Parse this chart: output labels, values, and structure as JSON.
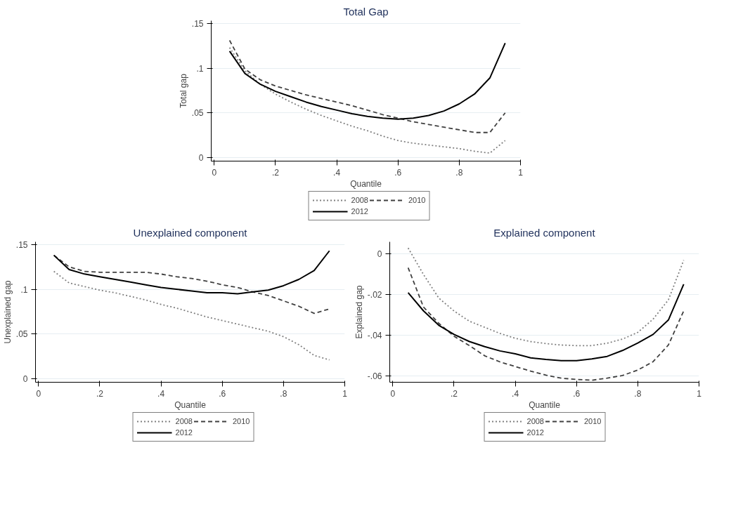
{
  "chart_data": [
    {
      "type": "line",
      "title": "Total Gap",
      "xlabel": "Quantile",
      "ylabel": "Total gap",
      "x": [
        0.05,
        0.1,
        0.15,
        0.2,
        0.25,
        0.3,
        0.35,
        0.4,
        0.45,
        0.5,
        0.55,
        0.6,
        0.65,
        0.7,
        0.75,
        0.8,
        0.85,
        0.9,
        0.95
      ],
      "xlim": [
        -0.01,
        1.0
      ],
      "xticks": [
        0,
        {
          "value": 0.2,
          "label": ".2"
        },
        {
          "value": 0.4,
          "label": ".4"
        },
        {
          "value": 0.6,
          "label": ".6"
        },
        {
          "value": 0.8,
          "label": ".8"
        },
        1
      ],
      "ylim": [
        -0.004,
        0.153
      ],
      "yticks": [
        0,
        {
          "value": 0.05,
          "label": ".05"
        },
        {
          "value": 0.1,
          "label": ".1"
        },
        {
          "value": 0.15,
          "label": ".15"
        }
      ],
      "grid": "y",
      "legend": "bottom",
      "series": [
        {
          "name": "2008",
          "color": "#808080",
          "line_style": "dotted",
          "values": [
            0.123,
            0.097,
            0.082,
            0.071,
            0.062,
            0.054,
            0.047,
            0.041,
            0.035,
            0.03,
            0.024,
            0.019,
            0.016,
            0.014,
            0.012,
            0.01,
            0.007,
            0.005,
            0.019
          ]
        },
        {
          "name": "2010",
          "color": "#404040",
          "line_style": "dashed",
          "values": [
            0.131,
            0.099,
            0.087,
            0.08,
            0.075,
            0.07,
            0.066,
            0.062,
            0.058,
            0.053,
            0.048,
            0.044,
            0.04,
            0.037,
            0.034,
            0.031,
            0.028,
            0.028,
            0.05
          ]
        },
        {
          "name": "2012",
          "color": "#000000",
          "line_style": "solid",
          "values": [
            0.119,
            0.094,
            0.082,
            0.074,
            0.068,
            0.062,
            0.057,
            0.053,
            0.049,
            0.046,
            0.044,
            0.043,
            0.044,
            0.047,
            0.052,
            0.06,
            0.071,
            0.089,
            0.128
          ]
        }
      ]
    },
    {
      "type": "line",
      "title": "Unexplained component",
      "xlabel": "Quantile",
      "ylabel": "Unexplained gap",
      "x": [
        0.05,
        0.1,
        0.15,
        0.2,
        0.25,
        0.3,
        0.35,
        0.4,
        0.45,
        0.5,
        0.55,
        0.6,
        0.65,
        0.7,
        0.75,
        0.8,
        0.85,
        0.9,
        0.95
      ],
      "xlim": [
        -0.01,
        1.0
      ],
      "xticks": [
        0,
        {
          "value": 0.2,
          "label": ".2"
        },
        {
          "value": 0.4,
          "label": ".4"
        },
        {
          "value": 0.6,
          "label": ".6"
        },
        {
          "value": 0.8,
          "label": ".8"
        },
        1
      ],
      "ylim": [
        -0.004,
        0.153
      ],
      "yticks": [
        0,
        {
          "value": 0.05,
          "label": ".05"
        },
        {
          "value": 0.1,
          "label": ".1"
        },
        {
          "value": 0.15,
          "label": ".15"
        }
      ],
      "grid": "y",
      "legend": "bottom",
      "series": [
        {
          "name": "2008",
          "color": "#808080",
          "line_style": "dotted",
          "values": [
            0.12,
            0.107,
            0.103,
            0.099,
            0.096,
            0.092,
            0.088,
            0.083,
            0.079,
            0.074,
            0.069,
            0.065,
            0.061,
            0.057,
            0.053,
            0.047,
            0.038,
            0.026,
            0.021
          ]
        },
        {
          "name": "2010",
          "color": "#404040",
          "line_style": "dashed",
          "values": [
            0.138,
            0.125,
            0.12,
            0.119,
            0.119,
            0.119,
            0.119,
            0.117,
            0.114,
            0.112,
            0.109,
            0.105,
            0.102,
            0.097,
            0.093,
            0.087,
            0.081,
            0.073,
            0.078
          ]
        },
        {
          "name": "2012",
          "color": "#000000",
          "line_style": "solid",
          "values": [
            0.138,
            0.122,
            0.117,
            0.114,
            0.111,
            0.108,
            0.105,
            0.102,
            0.1,
            0.098,
            0.096,
            0.096,
            0.095,
            0.097,
            0.099,
            0.104,
            0.111,
            0.121,
            0.143
          ]
        }
      ]
    },
    {
      "type": "line",
      "title": "Explained component",
      "xlabel": "Quantile",
      "ylabel": "Explained gap",
      "x": [
        0.05,
        0.1,
        0.15,
        0.2,
        0.25,
        0.3,
        0.35,
        0.4,
        0.45,
        0.5,
        0.55,
        0.6,
        0.65,
        0.7,
        0.75,
        0.8,
        0.85,
        0.9,
        0.95
      ],
      "xlim": [
        -0.01,
        1.0
      ],
      "xticks": [
        0,
        {
          "value": 0.2,
          "label": ".2"
        },
        {
          "value": 0.4,
          "label": ".4"
        },
        {
          "value": 0.6,
          "label": ".6"
        },
        {
          "value": 0.8,
          "label": ".8"
        },
        1
      ],
      "ylim": [
        -0.063,
        0.006
      ],
      "yticks": [
        {
          "value": -0.06,
          "label": "-.06"
        },
        {
          "value": -0.04,
          "label": "-.04"
        },
        {
          "value": -0.02,
          "label": "-.02"
        },
        0
      ],
      "grid": "y",
      "legend": "bottom",
      "series": [
        {
          "name": "2008",
          "color": "#808080",
          "line_style": "dotted",
          "values": [
            0.003,
            -0.01,
            -0.0216,
            -0.028,
            -0.033,
            -0.036,
            -0.039,
            -0.0414,
            -0.043,
            -0.044,
            -0.0447,
            -0.045,
            -0.045,
            -0.0438,
            -0.0418,
            -0.0385,
            -0.032,
            -0.0225,
            -0.003
          ]
        },
        {
          "name": "2010",
          "color": "#404040",
          "line_style": "dashed",
          "values": [
            -0.0067,
            -0.026,
            -0.034,
            -0.0404,
            -0.045,
            -0.05,
            -0.053,
            -0.0553,
            -0.0575,
            -0.0595,
            -0.061,
            -0.0616,
            -0.062,
            -0.061,
            -0.0597,
            -0.057,
            -0.0529,
            -0.0447,
            -0.0279
          ]
        },
        {
          "name": "2012",
          "color": "#000000",
          "line_style": "solid",
          "values": [
            -0.019,
            -0.0279,
            -0.035,
            -0.0395,
            -0.043,
            -0.0455,
            -0.0476,
            -0.049,
            -0.051,
            -0.0518,
            -0.0524,
            -0.0524,
            -0.0515,
            -0.0503,
            -0.0474,
            -0.0437,
            -0.0395,
            -0.0324,
            -0.0148
          ]
        }
      ]
    }
  ]
}
